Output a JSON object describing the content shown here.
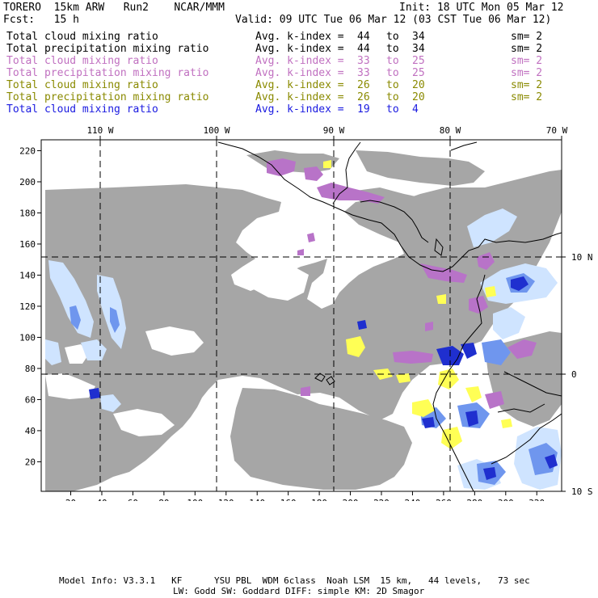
{
  "header": {
    "model": "TORERO  15km ARW   Run2    NCAR/MMM",
    "init": "Init: 18 UTC Mon 05 Mar 12",
    "fcst": "Fcst:   15 h",
    "valid": "Valid: 09 UTC Tue 06 Mar 12 (03 CST Tue 06 Mar 12)"
  },
  "legend": [
    {
      "field": "Total cloud mixing ratio",
      "kindex": "Avg. k-index =",
      "from": "44",
      "to_word": "to",
      "to": "34",
      "sm": "sm= 2",
      "color": "#000000"
    },
    {
      "field": "Total precipitation mixing ratio",
      "kindex": "Avg. k-index =",
      "from": "44",
      "to_word": "to",
      "to": "34",
      "sm": "sm= 2",
      "color": "#000000"
    },
    {
      "field": "Total cloud mixing ratio",
      "kindex": "Avg. k-index =",
      "from": "33",
      "to_word": "to",
      "to": "25",
      "sm": "sm= 2",
      "color": "#c070c0"
    },
    {
      "field": "Total precipitation mixing ratio",
      "kindex": "Avg. k-index =",
      "from": "33",
      "to_word": "to",
      "to": "25",
      "sm": "sm= 2",
      "color": "#c070c0"
    },
    {
      "field": "Total cloud mixing ratio",
      "kindex": "Avg. k-index =",
      "from": "26",
      "to_word": "to",
      "to": "20",
      "sm": "sm= 2",
      "color": "#8a8a00"
    },
    {
      "field": "Total precipitation mixing ratio",
      "kindex": "Avg. k-index =",
      "from": "26",
      "to_word": "to",
      "to": "20",
      "sm": "sm= 2",
      "color": "#8a8a00"
    },
    {
      "field": "Total cloud mixing ratio",
      "kindex": "Avg. k-index =",
      "from": "19",
      "to_word": "to",
      "to": "4",
      "sm": "",
      "color": "#1a1ae0"
    }
  ],
  "map": {
    "lon_labels": [
      "110 W",
      "100 W",
      "90 W",
      "80 W",
      "70 W"
    ],
    "lat_labels": [
      "10 N",
      "0",
      "10 S"
    ],
    "x_ticks": [
      "20",
      "40",
      "60",
      "80",
      "100",
      "120",
      "140",
      "160",
      "180",
      "200",
      "220",
      "240",
      "260",
      "280",
      "300",
      "320"
    ],
    "y_ticks": [
      "220",
      "200",
      "180",
      "160",
      "140",
      "120",
      "100",
      "80",
      "60",
      "40",
      "20"
    ],
    "colors": {
      "cloud_gray": "#a6a6a6",
      "light_blue": "#cfe4ff",
      "blue": "#6f96ee",
      "dark_blue": "#1f2fcf",
      "purple": "#b873c8",
      "yellow": "#ffff55",
      "coast": "#000000"
    }
  },
  "footer": {
    "line1": "Model Info: V3.3.1   KF      YSU PBL  WDM 6class  Noah LSM  15 km,   44 levels,   73 sec",
    "line2": "LW: Godd SW: Goddard DIFF: simple KM: 2D Smagor"
  }
}
